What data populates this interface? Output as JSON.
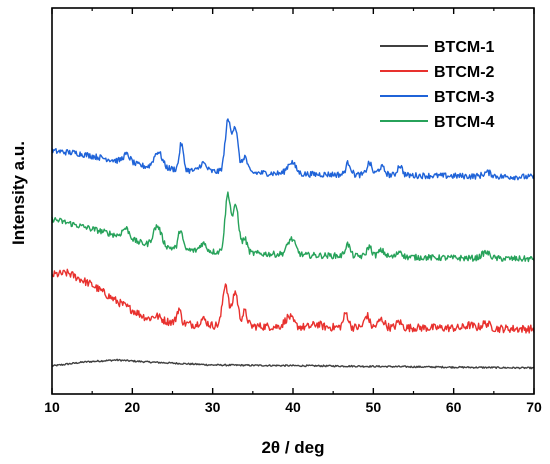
{
  "chart_data": {
    "type": "line",
    "xlabel": "2θ / deg",
    "ylabel": "Intensity a.u.",
    "xlim": [
      10,
      70
    ],
    "x_ticks": [
      "10",
      "20",
      "30",
      "40",
      "50",
      "60",
      "70"
    ],
    "y_ticks_labeled": false,
    "grid": false,
    "legend_position": "top-right",
    "series": [
      {
        "name": "BTCM-1",
        "color": "#404040",
        "baseline": 368,
        "amp": 8,
        "noise": 0.8,
        "background": [
          [
            10,
            2
          ],
          [
            14,
            6
          ],
          [
            18,
            8
          ],
          [
            22,
            6
          ],
          [
            30,
            3
          ],
          [
            45,
            2
          ],
          [
            70,
            0
          ]
        ],
        "peaks": []
      },
      {
        "name": "BTCM-2",
        "color": "#e8312e",
        "baseline": 329,
        "amp": 52,
        "noise": 4,
        "background": [
          [
            10,
            54
          ],
          [
            12,
            56
          ],
          [
            15,
            44
          ],
          [
            18,
            28
          ],
          [
            22,
            10
          ],
          [
            28,
            4
          ],
          [
            40,
            2
          ],
          [
            60,
            1
          ],
          [
            70,
            0
          ]
        ],
        "peaks": [
          [
            23.0,
            4,
            0.5
          ],
          [
            25.8,
            14,
            0.25
          ],
          [
            28.8,
            6,
            0.4
          ],
          [
            31.6,
            42,
            0.35
          ],
          [
            32.8,
            34,
            0.35
          ],
          [
            34.0,
            14,
            0.3
          ],
          [
            39.5,
            10,
            0.5
          ],
          [
            43.0,
            3,
            0.5
          ],
          [
            46.6,
            14,
            0.3
          ],
          [
            49.2,
            12,
            0.3
          ],
          [
            51.0,
            8,
            0.4
          ],
          [
            53.2,
            6,
            0.3
          ],
          [
            62.0,
            3,
            0.5
          ],
          [
            64.0,
            5,
            0.5
          ]
        ]
      },
      {
        "name": "BTCM-3",
        "color": "#1f63d8",
        "baseline": 177,
        "amp": 40,
        "noise": 3,
        "background": [
          [
            10,
            26
          ],
          [
            13,
            24
          ],
          [
            17,
            18
          ],
          [
            22,
            10
          ],
          [
            28,
            6
          ],
          [
            40,
            3
          ],
          [
            60,
            1
          ],
          [
            70,
            0
          ]
        ],
        "peaks": [
          [
            19.3,
            8,
            0.45
          ],
          [
            23.2,
            16,
            0.5
          ],
          [
            26.1,
            26,
            0.25
          ],
          [
            28.8,
            8,
            0.4
          ],
          [
            31.9,
            50,
            0.35
          ],
          [
            32.8,
            44,
            0.35
          ],
          [
            34.0,
            16,
            0.3
          ],
          [
            39.8,
            12,
            0.5
          ],
          [
            46.9,
            12,
            0.3
          ],
          [
            49.5,
            12,
            0.3
          ],
          [
            51.0,
            8,
            0.4
          ],
          [
            53.3,
            10,
            0.3
          ],
          [
            64.2,
            4,
            0.5
          ]
        ]
      },
      {
        "name": "BTCM-4",
        "color": "#27a25a",
        "baseline": 259,
        "amp": 36,
        "noise": 3,
        "background": [
          [
            10,
            40
          ],
          [
            13,
            34
          ],
          [
            17,
            26
          ],
          [
            22,
            14
          ],
          [
            28,
            8
          ],
          [
            40,
            4
          ],
          [
            60,
            1
          ],
          [
            70,
            0
          ]
        ],
        "peaks": [
          [
            19.2,
            10,
            0.45
          ],
          [
            23.1,
            20,
            0.5
          ],
          [
            26.0,
            20,
            0.25
          ],
          [
            28.8,
            8,
            0.4
          ],
          [
            31.9,
            58,
            0.35
          ],
          [
            32.9,
            46,
            0.35
          ],
          [
            34.0,
            14,
            0.3
          ],
          [
            39.8,
            16,
            0.5
          ],
          [
            46.8,
            12,
            0.3
          ],
          [
            49.5,
            10,
            0.3
          ],
          [
            51.0,
            6,
            0.4
          ],
          [
            53.3,
            6,
            0.3
          ],
          [
            64.0,
            6,
            0.5
          ]
        ]
      }
    ]
  }
}
